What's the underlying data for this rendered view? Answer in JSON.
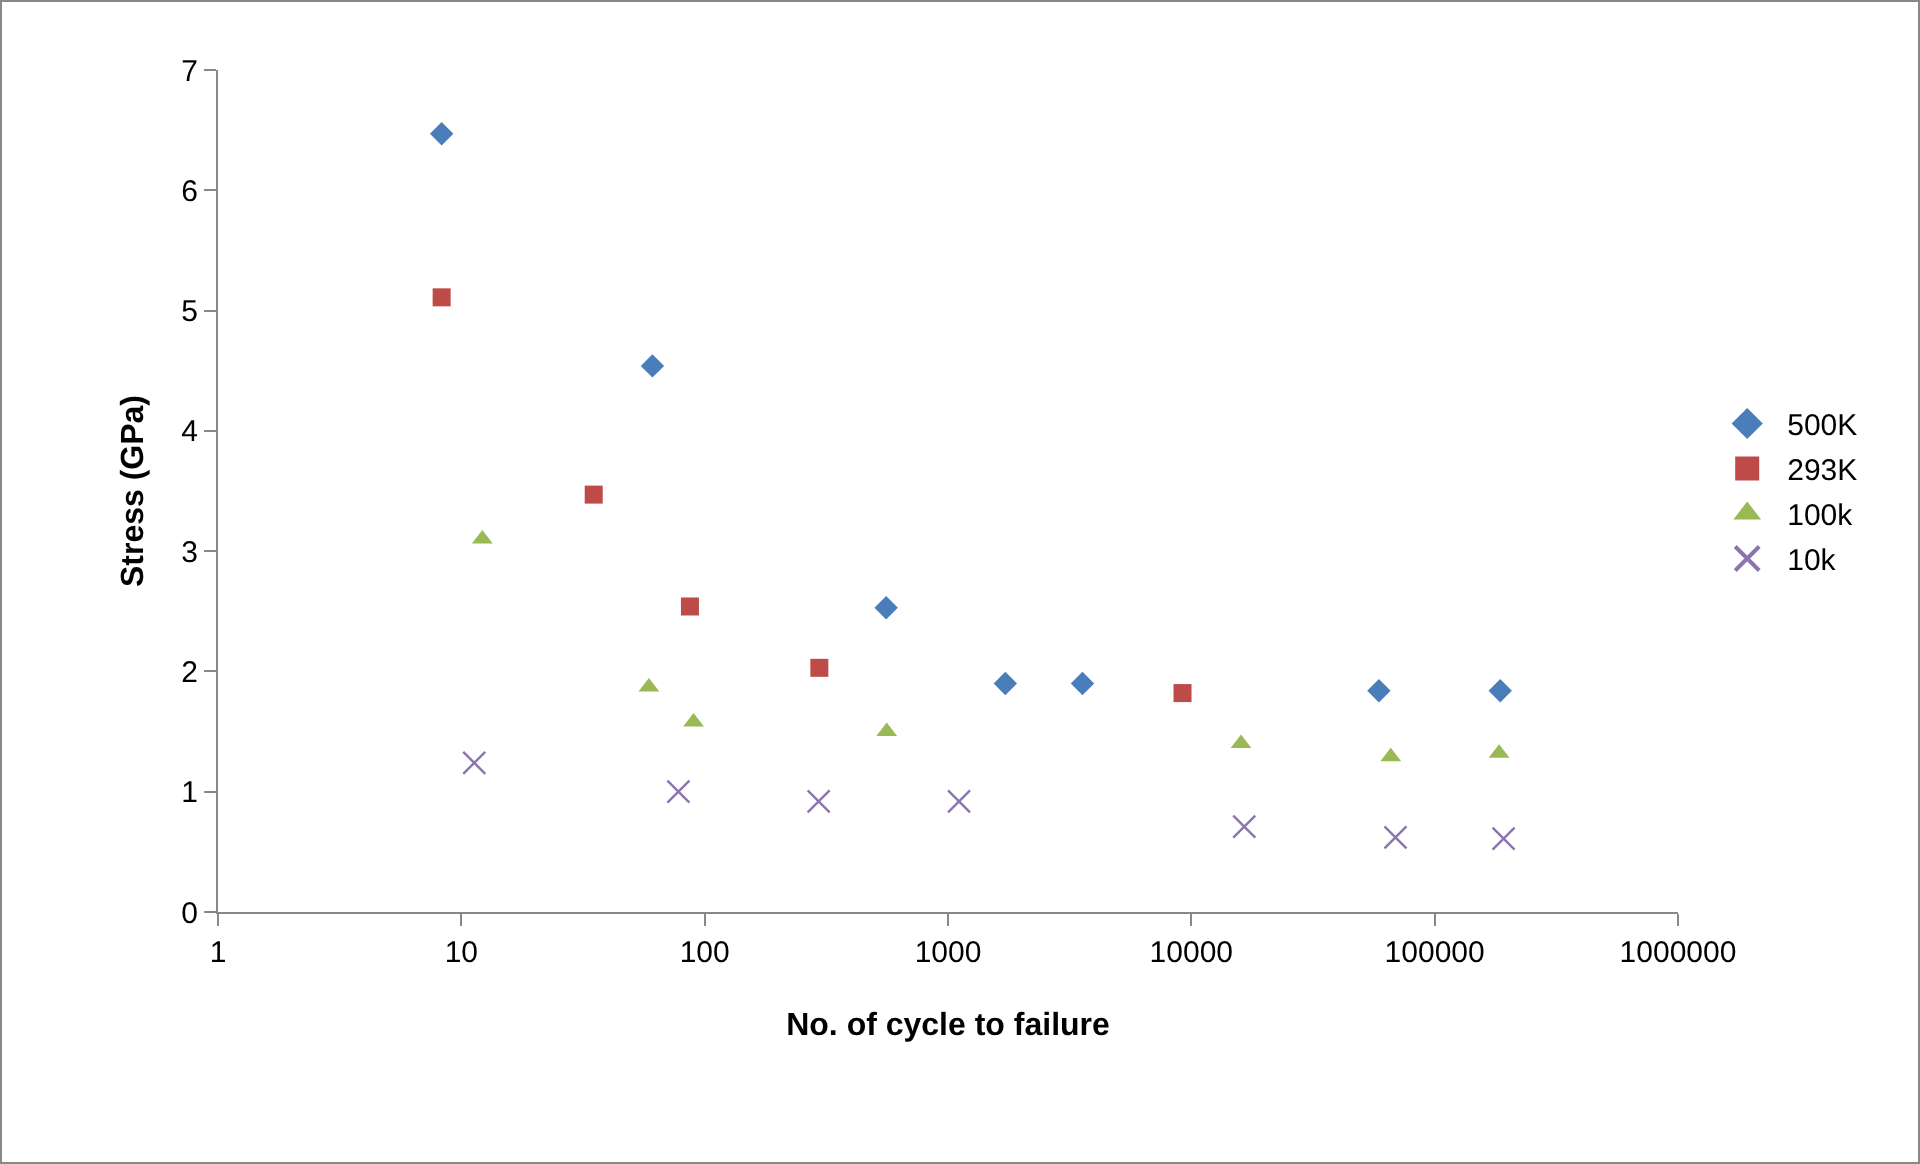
{
  "chart_data": {
    "type": "scatter",
    "xlabel": "No. of cycle to failure",
    "ylabel": "Stress (GPa)",
    "log": "x",
    "grid": false,
    "legend": "right",
    "xlim": [
      1,
      1000000
    ],
    "xticks": [
      1,
      10,
      100,
      1000,
      10000,
      100000,
      1000000
    ],
    "ylim": [
      0,
      7
    ],
    "yticks": [
      0,
      1,
      2,
      3,
      4,
      5,
      6,
      7
    ],
    "series": [
      {
        "name": "500K",
        "color": "#4a7ebb",
        "marker": "diamond",
        "x": [
          8.3,
          61,
          557,
          1720,
          3570,
          59000,
          186000
        ],
        "values": [
          6.47,
          4.54,
          2.53,
          1.9,
          1.9,
          1.84,
          1.84
        ]
      },
      {
        "name": "293K",
        "color": "#be4b48",
        "marker": "square",
        "x": [
          8.3,
          35,
          87,
          296,
          9200
        ],
        "values": [
          5.11,
          3.47,
          2.54,
          2.03,
          1.82
        ]
      },
      {
        "name": "100k",
        "color": "#98b954",
        "marker": "triangle",
        "x": [
          12.2,
          59,
          90,
          560,
          16000,
          66000,
          184000
        ],
        "values": [
          3.1,
          1.87,
          1.58,
          1.5,
          1.4,
          1.29,
          1.32
        ]
      },
      {
        "name": "10k",
        "color": "#8c74b0",
        "marker": "cross",
        "x": [
          11.3,
          78,
          294,
          1110,
          16500,
          69000,
          192000
        ],
        "values": [
          1.24,
          1.0,
          0.92,
          0.92,
          0.71,
          0.62,
          0.61
        ]
      }
    ]
  }
}
